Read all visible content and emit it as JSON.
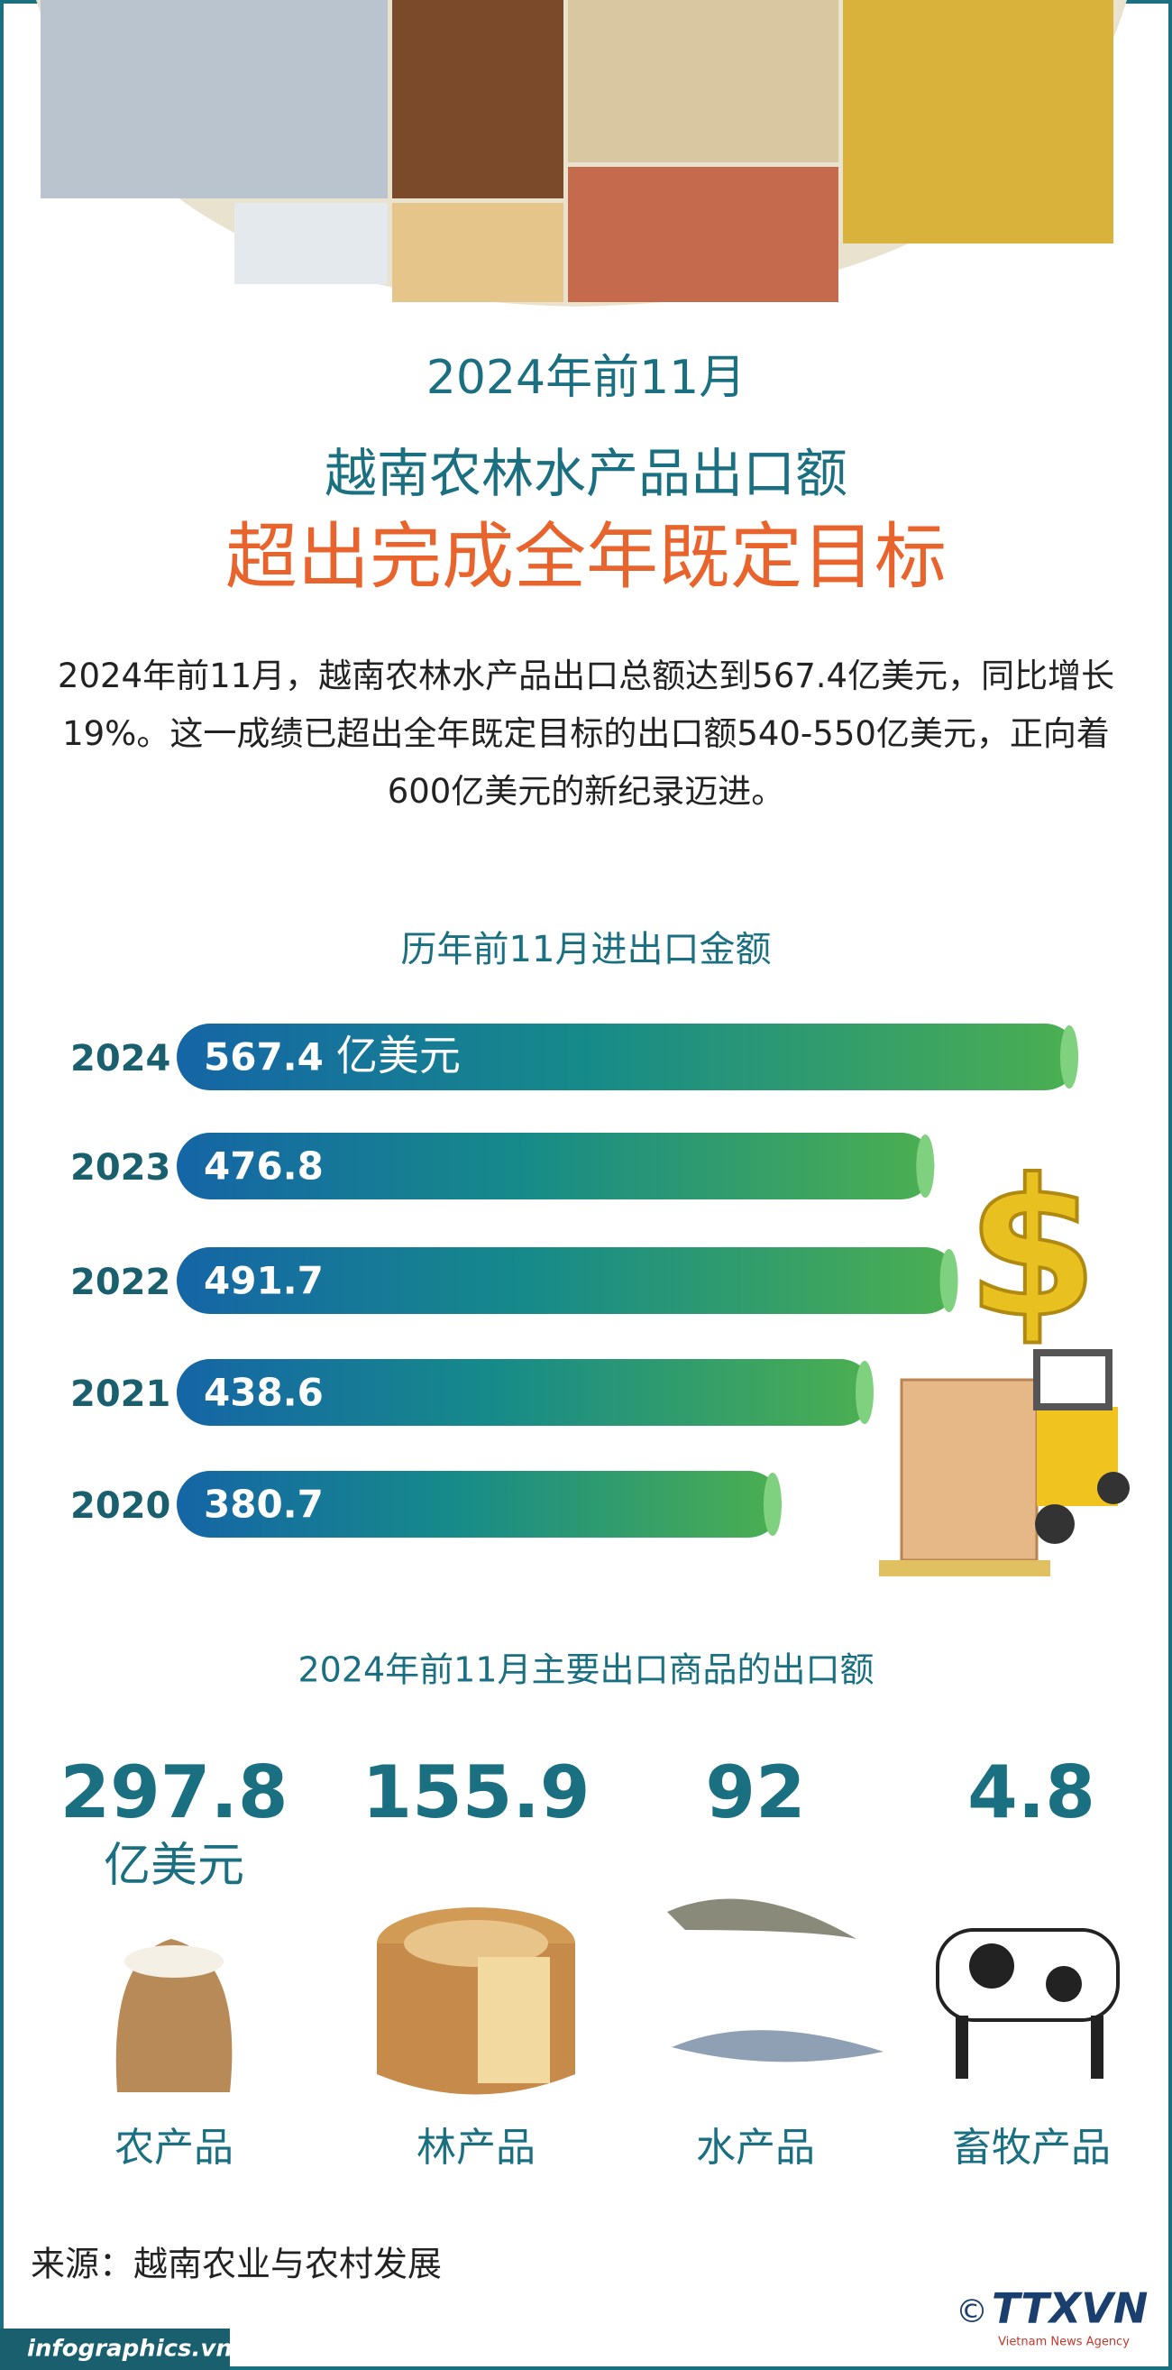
{
  "header": {
    "date": "2024年前11月",
    "subtitle": "越南农林水产品出口额",
    "title": "超出完成全年既定目标"
  },
  "intro": "2024年前11月，越南农林水产品出口总额达到567.4亿美元，同比增长19%。这一成绩已超出全年既定目标的出口额540-550亿美元，正向着600亿美元的新纪录迈进。",
  "chart_data": {
    "type": "hbar",
    "title": "历年前11月进出口金额",
    "categories": [
      "2024",
      "2023",
      "2022",
      "2021",
      "2020"
    ],
    "values": [
      567.4,
      476.8,
      491.7,
      438.6,
      380.7
    ],
    "unit": "亿美元"
  },
  "products": {
    "title": "2024年前11月主要出口商品的出口额",
    "unit": "亿美元",
    "items": [
      {
        "value": "297.8",
        "label": "农产品"
      },
      {
        "value": "155.9",
        "label": "林产品"
      },
      {
        "value": "92",
        "label": "水产品"
      },
      {
        "value": "4.8",
        "label": "畜牧产品"
      }
    ]
  },
  "source": "来源：越南农业与农村发展",
  "footer": {
    "site": "infographics.vn",
    "copyright": "©",
    "logo": "TTXVN",
    "agency": "Vietnam News Agency"
  }
}
